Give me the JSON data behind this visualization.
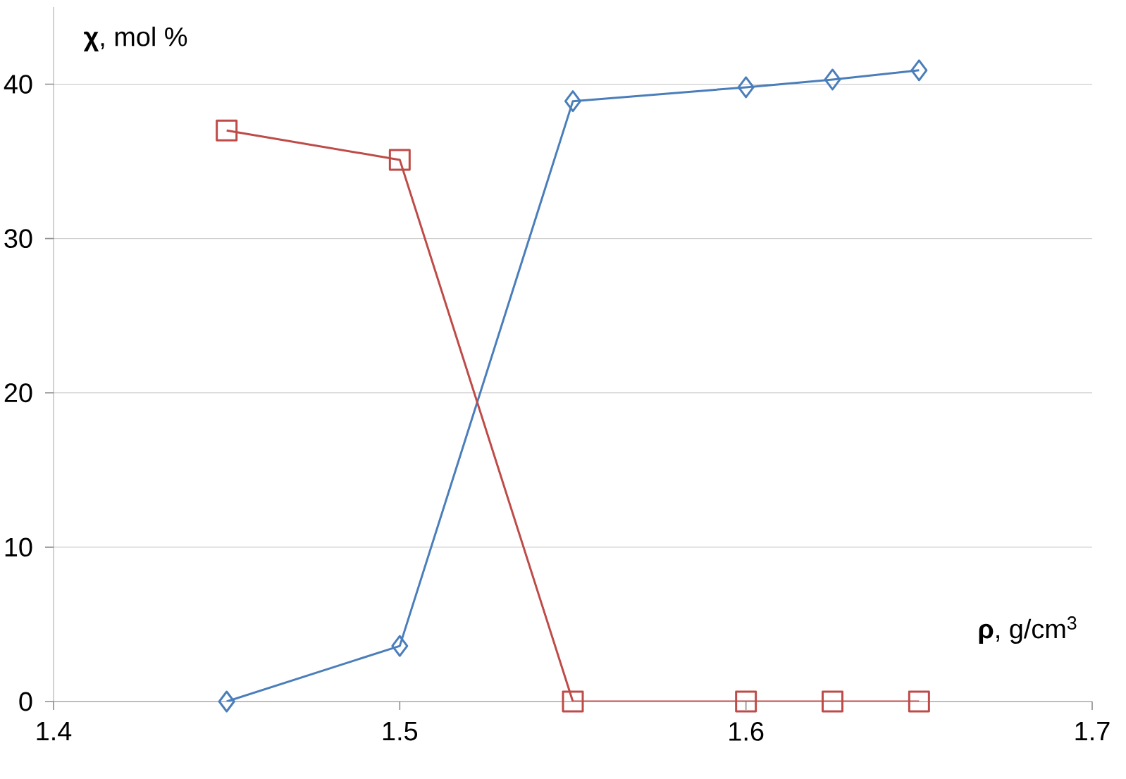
{
  "chart_data": {
    "type": "line",
    "xlabel": "**ρ**, g/cm$^{3}$",
    "ylabel": "**χ**, mol %",
    "xlim": [
      1.4,
      1.7
    ],
    "xticks": [
      1.4,
      1.5,
      1.6,
      1.7
    ],
    "ylim": [
      0,
      45
    ],
    "yticks": [
      0,
      10,
      20,
      30,
      40
    ],
    "grid": "y",
    "line_style": "solid",
    "series": [
      {
        "color": "#4a7ebb",
        "marker": "diamond",
        "x": [
          1.45,
          1.5,
          1.55,
          1.6,
          1.625,
          1.65
        ],
        "values": [
          0,
          3.6,
          38.9,
          39.8,
          40.3,
          40.9
        ]
      },
      {
        "color": "#be4b48",
        "marker": "square",
        "x": [
          1.45,
          1.5,
          1.55,
          1.6,
          1.625,
          1.65
        ],
        "values": [
          37,
          35.1,
          0,
          0,
          0,
          0
        ]
      }
    ]
  }
}
